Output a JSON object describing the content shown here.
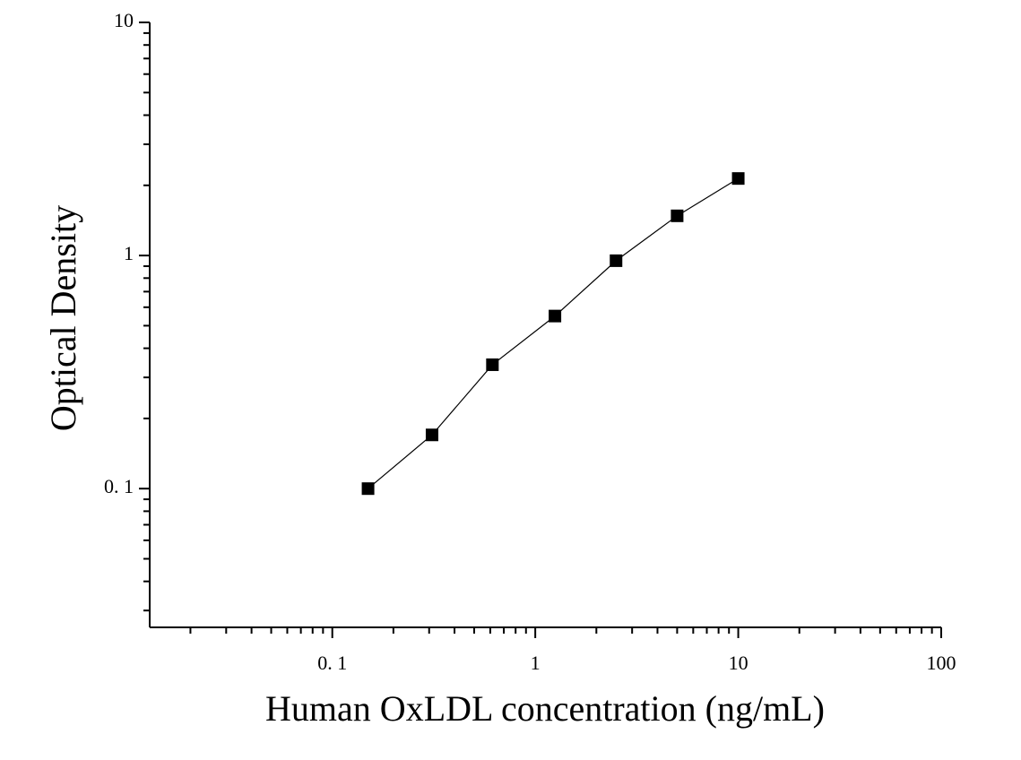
{
  "chart_data": {
    "type": "scatter",
    "x_label": "Human OxLDL concentration (ng/mL)",
    "y_label": "Optical Density",
    "x_log": true,
    "y_log": true,
    "minor_ticks": true,
    "fit_line": true,
    "xlim": [
      0.0126,
      100
    ],
    "ylim": [
      0.0254,
      10
    ],
    "xticks": [
      {
        "value": 0.1,
        "label": "0. 1"
      },
      1,
      10,
      100
    ],
    "yticks": [
      {
        "value": 0.1,
        "label": "0. 1"
      },
      1,
      10
    ],
    "series": [
      {
        "color": "#000000",
        "x": [
          0.15,
          0.31,
          0.615,
          1.25,
          2.5,
          5,
          10
        ],
        "values": [
          0.1,
          0.17,
          0.34,
          0.55,
          0.95,
          1.48,
          2.14
        ]
      }
    ]
  }
}
